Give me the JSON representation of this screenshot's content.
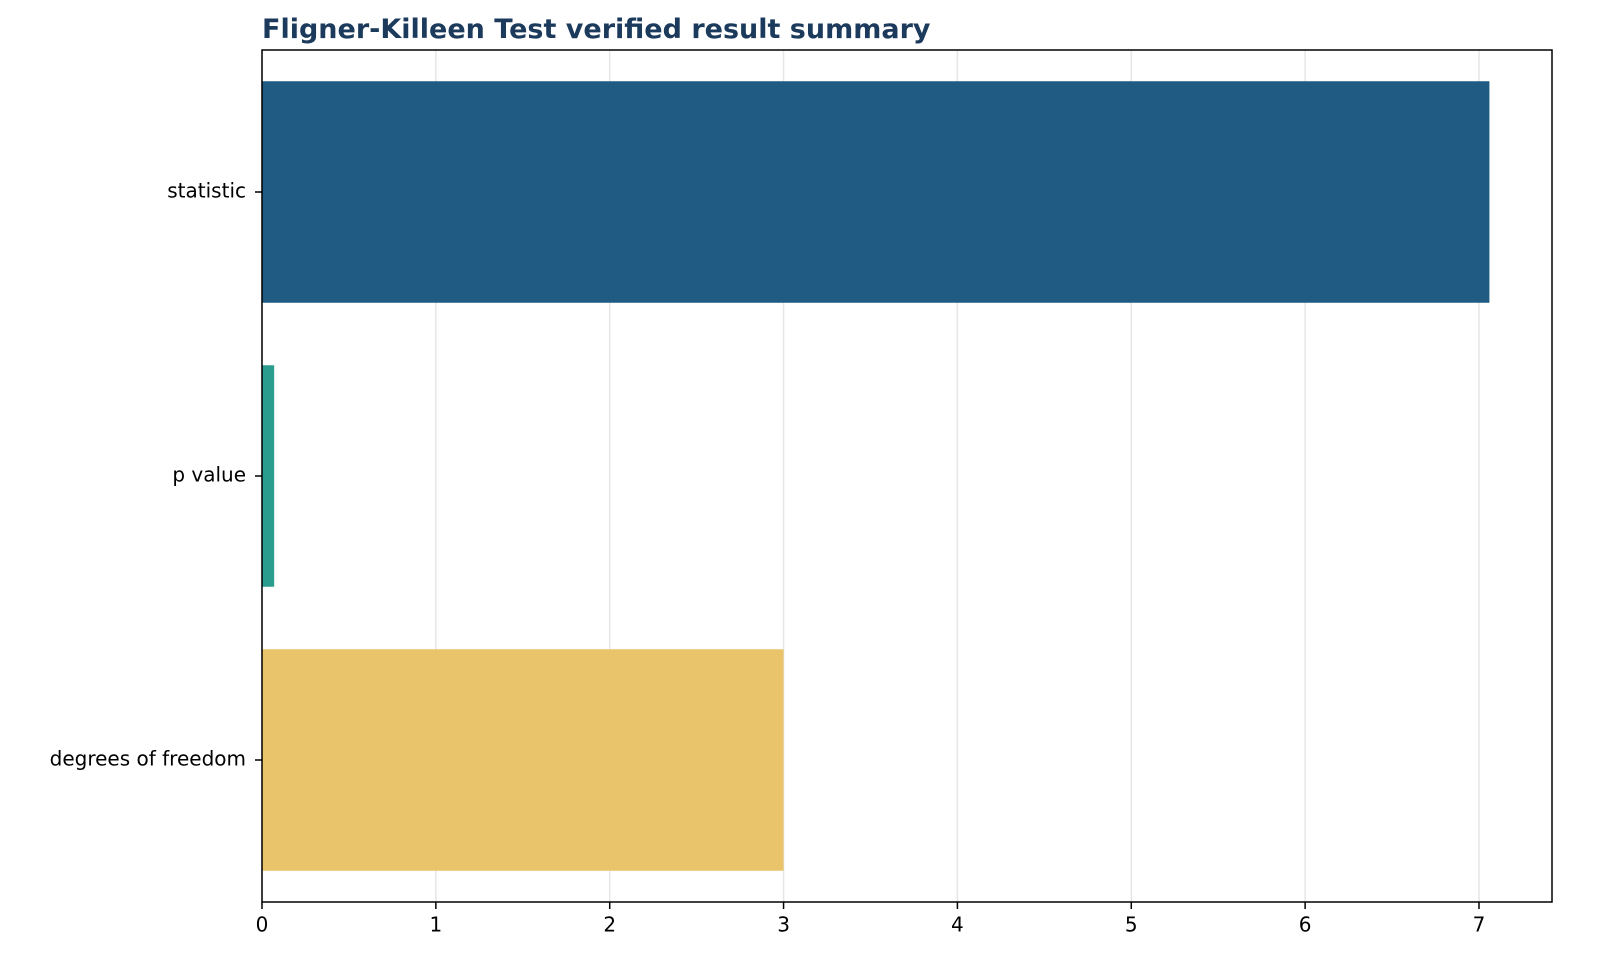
{
  "chart_data": {
    "type": "barh",
    "title": "Fligner-Killeen Test verified result summary",
    "categories": [
      "statistic",
      "p value",
      "degrees of freedom"
    ],
    "values": [
      7.06,
      0.07,
      3
    ],
    "colors": [
      "#1f5b82",
      "#2a9d8f",
      "#e9c46a"
    ],
    "xlim": [
      0,
      7.42
    ],
    "xticks": [
      0,
      1,
      2,
      3,
      4,
      5,
      6,
      7
    ],
    "grid": true
  }
}
